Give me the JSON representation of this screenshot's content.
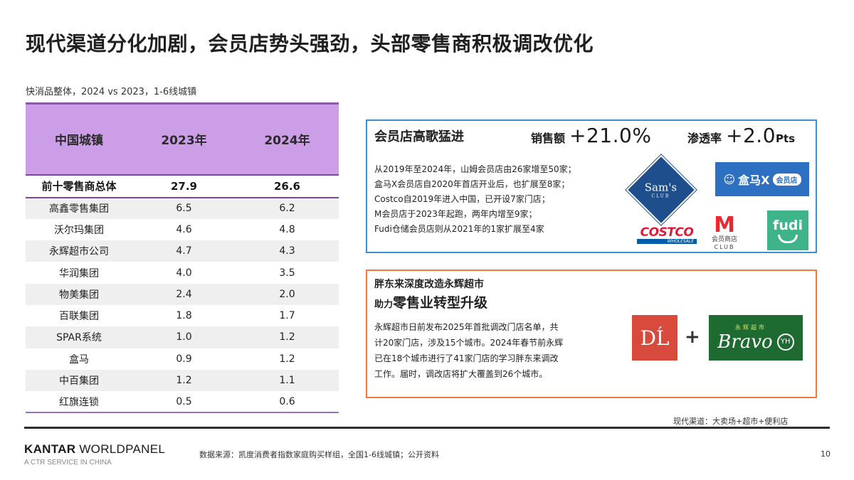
{
  "page": {
    "title": "现代渠道分化加剧，会员店势头强劲，头部零售商积极调改优化",
    "page_number": "10"
  },
  "table": {
    "subtitle": "快消品整体，2024 vs 2023，1-6线城镇",
    "headers": [
      "中国城镇",
      "2023年",
      "2024年"
    ],
    "header_bg": "#cc9ee8",
    "total_row": {
      "name": "前十零售商总体",
      "y2023": "27.9",
      "y2024": "26.6"
    },
    "rows": [
      {
        "name": "高鑫零售集团",
        "y2023": "6.5",
        "y2024": "6.2"
      },
      {
        "name": "沃尔玛集团",
        "y2023": "4.6",
        "y2024": "4.8"
      },
      {
        "name": "永辉超市公司",
        "y2023": "4.7",
        "y2024": "4.3"
      },
      {
        "name": "华润集团",
        "y2023": "4.0",
        "y2024": "3.5"
      },
      {
        "name": "物美集团",
        "y2023": "2.4",
        "y2024": "2.0"
      },
      {
        "name": "百联集团",
        "y2023": "1.8",
        "y2024": "1.7"
      },
      {
        "name": "SPAR系统",
        "y2023": "1.0",
        "y2024": "1.2"
      },
      {
        "name": "盒马",
        "y2023": "0.9",
        "y2024": "1.2"
      },
      {
        "name": "中百集团",
        "y2023": "1.2",
        "y2024": "1.1"
      },
      {
        "name": "红旗连锁",
        "y2023": "0.5",
        "y2024": "0.6"
      }
    ]
  },
  "membership_box": {
    "heading": "会员店高歌猛进",
    "border_color": "#3d8fd0",
    "metrics": [
      {
        "label": "销售额",
        "value": "+21.0%",
        "unit": ""
      },
      {
        "label": "渗透率",
        "value": "+2.0",
        "unit": "Pts"
      }
    ],
    "lines": [
      "从2019年至2024年，山姆会员店由26家增至50家；",
      "盒马X会员店自2020年首店开业后，也扩展至8家；",
      "Costco自2019年进入中国，已开设7家门店；",
      "M会员店于2023年起跑，两年内增至9家；",
      "Fudi仓储会员店则从2021年的1家扩展至4家"
    ],
    "logos": {
      "sams": {
        "big": "Sam's",
        "small": "CLUB"
      },
      "hema": {
        "text": "盒马X",
        "pill": "会员店"
      },
      "costco": {
        "main": "COSTCO",
        "sub": "WHOLESALE"
      },
      "m_club": {
        "letter": "M",
        "text": "会员商店",
        "club": "CLUB"
      },
      "fudi": {
        "text": "fudi"
      }
    }
  },
  "yonghui_box": {
    "title_line1": "胖东来深度改造永辉超市",
    "title_line2_prefix": "助力",
    "title_line2_big": "零售业转型升级",
    "border_color": "#f07a3c",
    "lines": [
      "永辉超市日前发布2025年首批调改门店名单，共",
      "计20家门店，涉及15个城市。2024年春节前永辉",
      "已在18个城市进行了41家门店的学习胖东来调改",
      "工作。届时，调改店将扩大覆盖到26个城市。"
    ],
    "logos": {
      "dl": {
        "text": "DĹ"
      },
      "plus": "+",
      "bravo": {
        "top": "永辉超市",
        "main": "Bravo",
        "badge": "YH"
      }
    }
  },
  "footer": {
    "channel_note": "现代渠道：大卖场+超市+便利店",
    "brand_bold": "KANTAR",
    "brand_rest": " WORLDPANEL",
    "brand_sub": "A CTR SERVICE IN CHINA",
    "source": "数据来源：凯度消费者指数家庭购买样组，全国1-6线城镇；公开资料"
  }
}
